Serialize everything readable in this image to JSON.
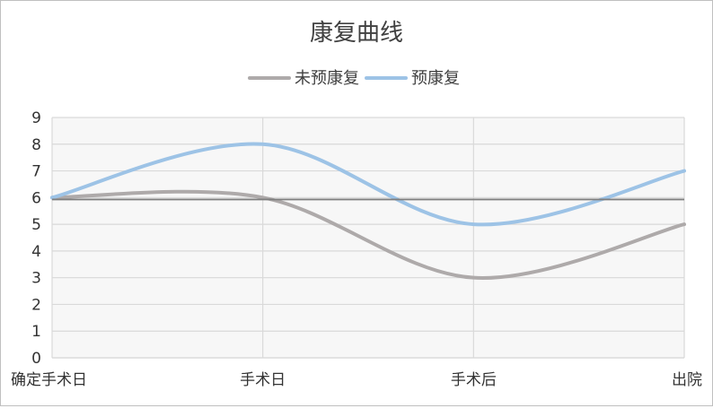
{
  "chart_data": {
    "type": "line",
    "title": "康复曲线",
    "categories": [
      "确定手术日",
      "手术日",
      "手术后",
      "出院"
    ],
    "series": [
      {
        "name": "未预康复",
        "values": [
          6,
          6,
          3,
          5
        ],
        "color": "#aeaaaa"
      },
      {
        "name": "预康复",
        "values": [
          6,
          8,
          5,
          7
        ],
        "color": "#9dc3e6"
      }
    ],
    "reference_line": {
      "value": 5.93,
      "color": "#7f7f7f"
    },
    "ylim": [
      0,
      9
    ],
    "yticks": [
      0,
      1,
      2,
      3,
      4,
      5,
      6,
      7,
      8,
      9
    ],
    "smooth": true,
    "grid": true,
    "legend_position": "top"
  }
}
